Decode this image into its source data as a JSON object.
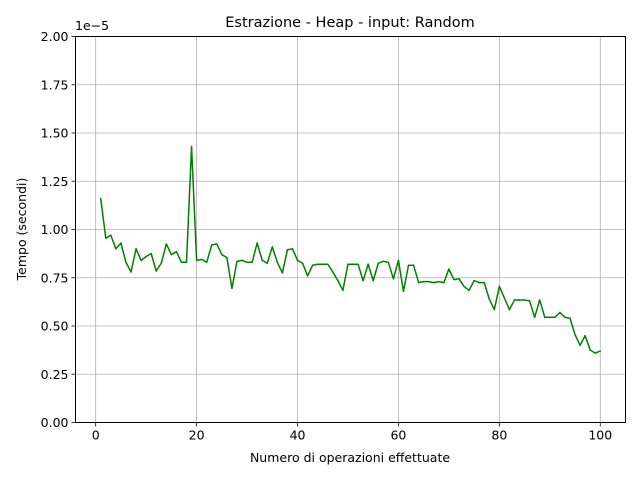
{
  "chart_data": {
    "type": "line",
    "title": "Estrazione - Heap - input: Random",
    "xlabel": "Numero di operazioni effettuate",
    "ylabel": "Tempo (secondi)",
    "y_offset_label": "1e−5",
    "xlim": [
      -4,
      105
    ],
    "ylim": [
      0,
      2.0
    ],
    "y_scale_factor": 1e-05,
    "x_ticks": [
      0,
      20,
      40,
      60,
      80,
      100
    ],
    "x_tick_labels": [
      "0",
      "20",
      "40",
      "60",
      "80",
      "100"
    ],
    "y_ticks": [
      0,
      0.25,
      0.5,
      0.75,
      1.0,
      1.25,
      1.5,
      1.75,
      2.0
    ],
    "y_tick_labels": [
      "0.00",
      "0.25",
      "0.50",
      "0.75",
      "1.00",
      "1.25",
      "1.50",
      "1.75",
      "2.00"
    ],
    "grid": true,
    "series": [
      {
        "color": "#008000",
        "x": [
          1,
          2,
          3,
          4,
          5,
          6,
          7,
          8,
          9,
          10,
          11,
          12,
          13,
          14,
          15,
          16,
          17,
          18,
          19,
          20,
          21,
          22,
          23,
          24,
          25,
          26,
          27,
          28,
          29,
          30,
          31,
          32,
          33,
          34,
          35,
          36,
          37,
          38,
          39,
          40,
          41,
          42,
          43,
          44,
          45,
          46,
          47,
          48,
          49,
          50,
          51,
          52,
          53,
          54,
          55,
          56,
          57,
          58,
          59,
          60,
          61,
          62,
          63,
          64,
          65,
          66,
          67,
          68,
          69,
          70,
          71,
          72,
          73,
          74,
          75,
          76,
          77,
          78,
          79,
          80,
          81,
          82,
          83,
          84,
          85,
          86,
          87,
          88,
          89,
          90,
          91,
          92,
          93,
          94,
          95,
          96,
          97,
          98,
          99,
          100
        ],
        "values": [
          1.16,
          0.955,
          0.97,
          0.9,
          0.93,
          0.83,
          0.78,
          0.9,
          0.84,
          0.86,
          0.875,
          0.785,
          0.825,
          0.925,
          0.87,
          0.885,
          0.83,
          0.83,
          1.43,
          0.84,
          0.845,
          0.83,
          0.92,
          0.925,
          0.87,
          0.855,
          0.695,
          0.835,
          0.84,
          0.83,
          0.83,
          0.93,
          0.84,
          0.825,
          0.91,
          0.83,
          0.775,
          0.895,
          0.9,
          0.84,
          0.825,
          0.76,
          0.815,
          0.82,
          0.82,
          0.82,
          0.78,
          0.735,
          0.685,
          0.82,
          0.82,
          0.82,
          0.735,
          0.82,
          0.735,
          0.825,
          0.835,
          0.83,
          0.745,
          0.84,
          0.68,
          0.815,
          0.815,
          0.725,
          0.73,
          0.73,
          0.725,
          0.73,
          0.725,
          0.795,
          0.74,
          0.745,
          0.705,
          0.685,
          0.735,
          0.725,
          0.725,
          0.64,
          0.585,
          0.705,
          0.645,
          0.585,
          0.635,
          0.635,
          0.635,
          0.63,
          0.545,
          0.635,
          0.545,
          0.545,
          0.545,
          0.57,
          0.545,
          0.54,
          0.455,
          0.4,
          0.45,
          0.375,
          0.36,
          0.37
        ]
      }
    ]
  }
}
